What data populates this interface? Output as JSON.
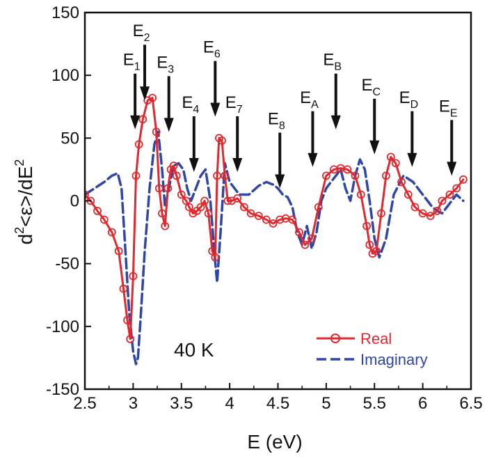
{
  "chart_data": {
    "type": "line",
    "title": "",
    "xlabel": "E (eV)",
    "ylabel_parts": [
      "d",
      "2",
      "<ε>/dE",
      "2"
    ],
    "xlim": [
      2.5,
      6.5
    ],
    "ylim": [
      -150,
      150
    ],
    "xticks": [
      "2.5",
      "3",
      "3.5",
      "4",
      "4.5",
      "5",
      "5.5",
      "6",
      "6.5"
    ],
    "yticks": [
      "150",
      "100",
      "50",
      "0",
      "-50",
      "-100",
      "-150"
    ],
    "annotation": "40 K",
    "legend": {
      "position": "bottom-right",
      "entries": [
        "Real",
        "Imaginary"
      ]
    },
    "colors": {
      "real": "#e0282e",
      "imaginary": "#2e46a6",
      "axis": "#111111"
    },
    "arrows": [
      {
        "base": "E",
        "sub": "1",
        "x": 3.02,
        "tip": 57
      },
      {
        "base": "E",
        "sub": "2",
        "x": 3.12,
        "tip": 80
      },
      {
        "base": "E",
        "sub": "3",
        "x": 3.37,
        "tip": 55
      },
      {
        "base": "E",
        "sub": "4",
        "x": 3.63,
        "tip": 23
      },
      {
        "base": "E",
        "sub": "6",
        "x": 3.85,
        "tip": 67
      },
      {
        "base": "E",
        "sub": "7",
        "x": 4.08,
        "tip": 23
      },
      {
        "base": "E",
        "sub": "8",
        "x": 4.52,
        "tip": 10
      },
      {
        "base": "E",
        "sub": "A",
        "x": 4.86,
        "tip": 27
      },
      {
        "base": "E",
        "sub": "B",
        "x": 5.1,
        "tip": 57
      },
      {
        "base": "E",
        "sub": "C",
        "x": 5.5,
        "tip": 37
      },
      {
        "base": "E",
        "sub": "D",
        "x": 5.89,
        "tip": 27
      },
      {
        "base": "E",
        "sub": "E",
        "x": 6.3,
        "tip": 20
      }
    ],
    "series": [
      {
        "name": "Real",
        "style": "solid-circles",
        "x": [
          2.5,
          2.56,
          2.63,
          2.7,
          2.78,
          2.85,
          2.9,
          2.94,
          2.97,
          3.0,
          3.03,
          3.06,
          3.1,
          3.15,
          3.2,
          3.24,
          3.27,
          3.3,
          3.33,
          3.36,
          3.39,
          3.42,
          3.45,
          3.5,
          3.55,
          3.58,
          3.62,
          3.66,
          3.7,
          3.74,
          3.78,
          3.82,
          3.85,
          3.87,
          3.89,
          3.92,
          3.95,
          3.98,
          4.02,
          4.08,
          4.15,
          4.22,
          4.3,
          4.38,
          4.45,
          4.52,
          4.58,
          4.65,
          4.72,
          4.78,
          4.85,
          4.92,
          5.0,
          5.08,
          5.15,
          5.22,
          5.3,
          5.36,
          5.42,
          5.45,
          5.48,
          5.52,
          5.57,
          5.62,
          5.67,
          5.72,
          5.78,
          5.85,
          5.92,
          6.0,
          6.08,
          6.15,
          6.2,
          6.28,
          6.35,
          6.42
        ],
        "y": [
          5,
          0,
          -8,
          -15,
          -25,
          -40,
          -70,
          -95,
          -110,
          -60,
          20,
          45,
          65,
          80,
          82,
          55,
          10,
          -10,
          -20,
          10,
          25,
          28,
          20,
          5,
          0,
          -5,
          -10,
          -8,
          -5,
          0,
          -10,
          -40,
          -45,
          20,
          50,
          48,
          20,
          0,
          0,
          2,
          -5,
          -10,
          -12,
          -15,
          -18,
          -15,
          -14,
          -15,
          -25,
          -35,
          -30,
          -5,
          20,
          25,
          26,
          25,
          20,
          5,
          -20,
          -35,
          -42,
          -40,
          -10,
          20,
          35,
          30,
          15,
          5,
          -5,
          -10,
          -12,
          -8,
          0,
          5,
          10,
          17
        ]
      },
      {
        "name": "Imaginary",
        "style": "dashed",
        "x": [
          2.5,
          2.6,
          2.7,
          2.78,
          2.84,
          2.88,
          2.92,
          2.96,
          3.0,
          3.03,
          3.05,
          3.08,
          3.12,
          3.17,
          3.22,
          3.26,
          3.3,
          3.33,
          3.37,
          3.42,
          3.47,
          3.52,
          3.56,
          3.6,
          3.65,
          3.7,
          3.75,
          3.8,
          3.84,
          3.87,
          3.91,
          3.95,
          4.0,
          4.1,
          4.2,
          4.3,
          4.38,
          4.45,
          4.5,
          4.55,
          4.6,
          4.65,
          4.7,
          4.75,
          4.8,
          4.85,
          4.9,
          4.95,
          5.0,
          5.05,
          5.1,
          5.15,
          5.2,
          5.25,
          5.3,
          5.35,
          5.4,
          5.45,
          5.5,
          5.55,
          5.62,
          5.7,
          5.8,
          5.9,
          6.0,
          6.05,
          6.1,
          6.15,
          6.2,
          6.25,
          6.3,
          6.35,
          6.42
        ],
        "y": [
          5,
          10,
          15,
          20,
          22,
          10,
          -40,
          -90,
          -120,
          -130,
          -125,
          -90,
          -40,
          10,
          45,
          55,
          25,
          -5,
          10,
          28,
          30,
          25,
          10,
          0,
          10,
          20,
          25,
          0,
          -40,
          -65,
          -20,
          30,
          15,
          5,
          5,
          12,
          15,
          13,
          10,
          5,
          3,
          -5,
          -25,
          -35,
          -20,
          -38,
          -25,
          0,
          10,
          15,
          20,
          25,
          10,
          0,
          20,
          33,
          25,
          0,
          -30,
          -45,
          -30,
          5,
          20,
          15,
          5,
          0,
          -5,
          -8,
          -10,
          -5,
          0,
          5,
          0
        ]
      }
    ]
  }
}
